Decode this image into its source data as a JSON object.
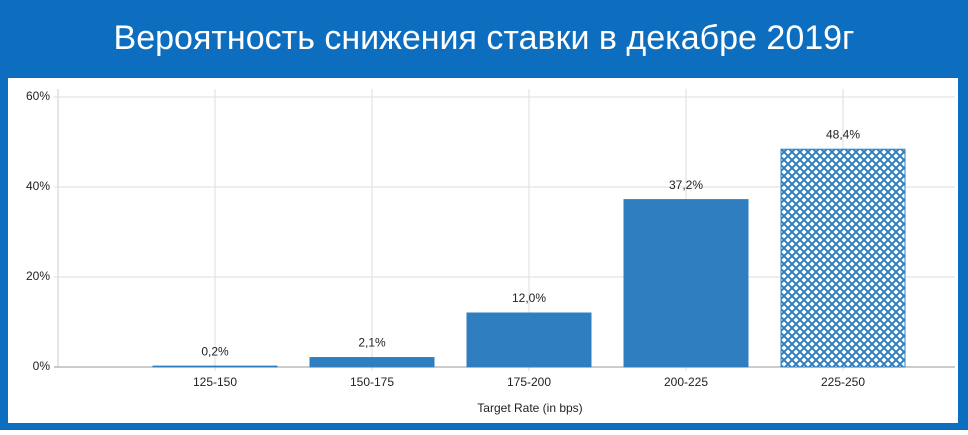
{
  "chart_data": {
    "type": "bar",
    "title": "Вероятность снижения ставки в декабре 2019г",
    "x_label": "Target Rate (in bps)",
    "categories": [
      "125-150",
      "150-175",
      "175-200",
      "200-225",
      "225-250"
    ],
    "values": [
      0.2,
      2.1,
      12.0,
      37.2,
      48.4
    ],
    "value_labels": [
      "0,2%",
      "2,1%",
      "12,0%",
      "37,2%",
      "48,4%"
    ],
    "hatched": [
      false,
      false,
      false,
      false,
      true
    ],
    "color": "#2f7fc0",
    "ylim": [
      0,
      60
    ],
    "yticks": [
      {
        "value": 0,
        "label": "0%"
      },
      {
        "value": 20,
        "label": "20%"
      },
      {
        "value": 40,
        "label": "40%"
      },
      {
        "value": 60,
        "label": "60%"
      }
    ],
    "grid": true
  }
}
